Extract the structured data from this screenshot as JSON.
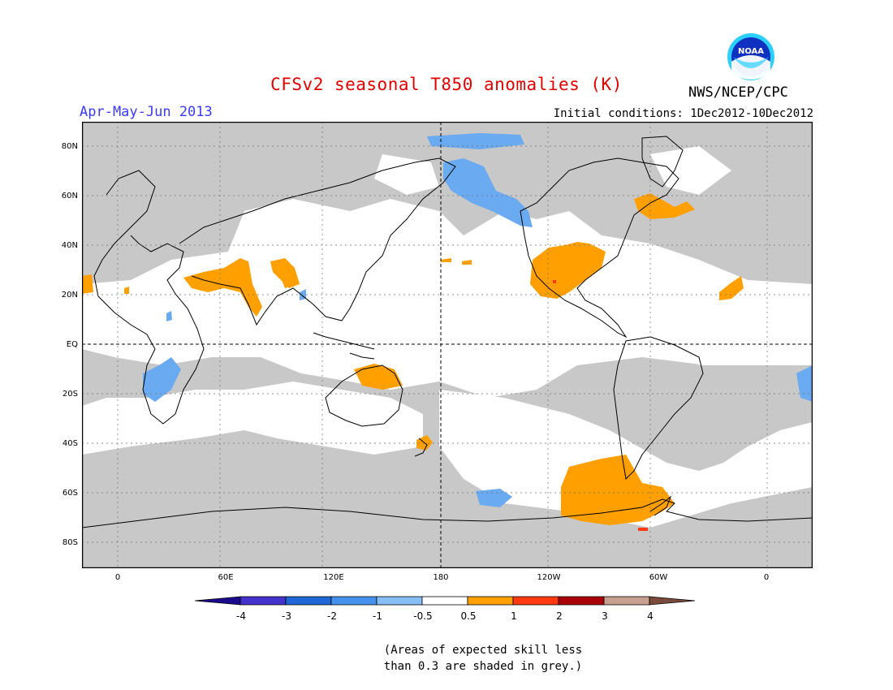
{
  "header": {
    "title": "CFSv2 seasonal T850 anomalies (K)",
    "season": "Apr-May-Jun 2013",
    "initial_conditions": "Initial conditions: 1Dec2012-10Dec2012",
    "org": "NWS/NCEP/CPC",
    "logo_text": "NOAA"
  },
  "axes": {
    "lat_ticks": [
      "80N",
      "60N",
      "40N",
      "20N",
      "EQ",
      "20S",
      "40S",
      "60S",
      "80S"
    ],
    "lon_ticks": [
      "0",
      "60E",
      "120E",
      "180",
      "120W",
      "60W",
      "0"
    ]
  },
  "legend": {
    "labels": [
      "-4",
      "-3",
      "-2",
      "-1",
      "-0.5",
      "0.5",
      "1",
      "2",
      "3",
      "4"
    ],
    "colors": [
      "#1a0a8c",
      "#4433cc",
      "#1f66d6",
      "#4592ee",
      "#86bff5",
      "#ffffff",
      "#ffa000",
      "#ff3a10",
      "#aa0008",
      "#c8a090",
      "#7a4a3a"
    ]
  },
  "colors": {
    "grey_mask": "#c8c8c8",
    "warm_anomaly": "#ffa000",
    "cool_anomaly": "#6aaaf0",
    "strong_warm": "#ff3a10"
  },
  "notes": {
    "line1": "(Areas of expected skill less",
    "line2": "than 0.3 are shaded in grey.)"
  }
}
